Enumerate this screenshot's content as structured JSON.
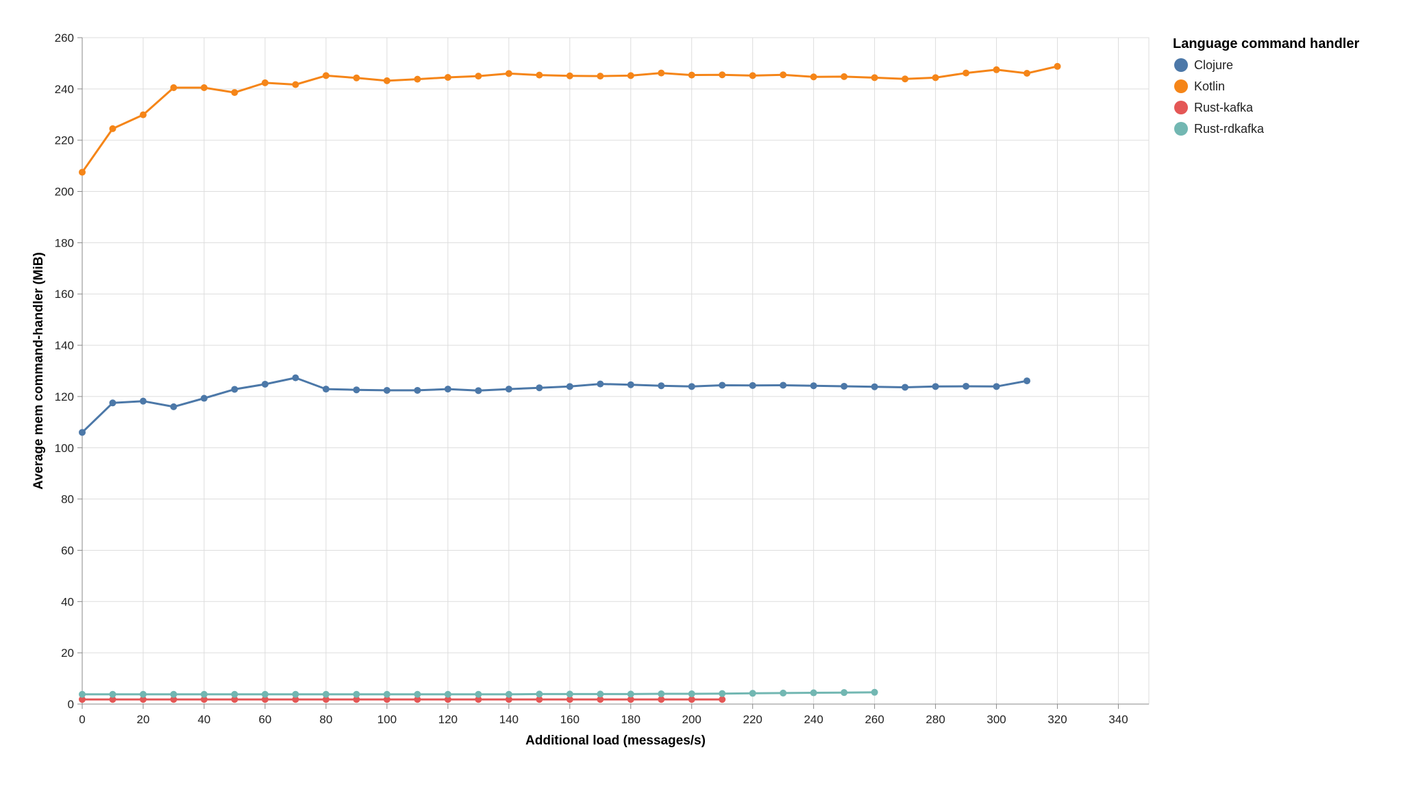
{
  "chart_data": {
    "type": "line",
    "title": "",
    "xlabel": "Additional load (messages/s)",
    "ylabel": "Average mem command-handler (MiB)",
    "xlim": [
      0,
      350
    ],
    "ylim": [
      0,
      260
    ],
    "x_ticks": [
      0,
      20,
      40,
      60,
      80,
      100,
      120,
      140,
      160,
      180,
      200,
      220,
      240,
      260,
      280,
      300,
      320,
      340
    ],
    "y_ticks": [
      0,
      20,
      40,
      60,
      80,
      100,
      120,
      140,
      160,
      180,
      200,
      220,
      240,
      260
    ],
    "grid": true,
    "legend": {
      "title": "Language command handler",
      "placement": "top-right"
    },
    "series": [
      {
        "name": "Clojure",
        "color": "#4c78a8",
        "x": [
          0,
          10,
          20,
          30,
          40,
          50,
          60,
          70,
          80,
          90,
          100,
          110,
          120,
          130,
          140,
          150,
          160,
          170,
          180,
          190,
          200,
          210,
          220,
          230,
          240,
          250,
          260,
          270,
          280,
          290,
          300,
          310
        ],
        "values": [
          106,
          117.5,
          118.2,
          116,
          119.3,
          122.8,
          124.8,
          127.3,
          122.9,
          122.6,
          122.4,
          122.4,
          122.9,
          122.3,
          122.9,
          123.4,
          123.9,
          124.9,
          124.6,
          124.2,
          123.9,
          124.4,
          124.3,
          124.4,
          124.2,
          124,
          123.8,
          123.6,
          123.9,
          124,
          123.9,
          126.1
        ]
      },
      {
        "name": "Kotlin",
        "color": "#f58518",
        "x": [
          0,
          10,
          20,
          30,
          40,
          50,
          60,
          70,
          80,
          90,
          100,
          110,
          120,
          130,
          140,
          150,
          160,
          170,
          180,
          190,
          200,
          210,
          220,
          230,
          240,
          250,
          260,
          270,
          280,
          290,
          300,
          310,
          320
        ],
        "values": [
          207.5,
          224.5,
          229.9,
          240.5,
          240.5,
          238.6,
          242.4,
          241.7,
          245.2,
          244.3,
          243.2,
          243.8,
          244.5,
          245,
          246,
          245.4,
          245.1,
          245,
          245.2,
          246.2,
          245.4,
          245.5,
          245.2,
          245.5,
          244.7,
          244.8,
          244.4,
          243.9,
          244.4,
          246.2,
          247.5,
          246.1,
          248.8
        ]
      },
      {
        "name": "Rust-kafka",
        "color": "#e45756",
        "x": [
          0,
          10,
          20,
          30,
          40,
          50,
          60,
          70,
          80,
          90,
          100,
          110,
          120,
          130,
          140,
          150,
          160,
          170,
          180,
          190,
          200,
          210
        ],
        "values": [
          1.8,
          1.8,
          1.8,
          1.8,
          1.8,
          1.8,
          1.8,
          1.8,
          1.8,
          1.8,
          1.8,
          1.8,
          1.8,
          1.8,
          1.8,
          1.8,
          1.8,
          1.8,
          1.8,
          1.8,
          1.8,
          1.8
        ]
      },
      {
        "name": "Rust-rdkafka",
        "color": "#72b7b2",
        "x": [
          0,
          10,
          20,
          30,
          40,
          50,
          60,
          70,
          80,
          90,
          100,
          110,
          120,
          130,
          140,
          150,
          160,
          170,
          180,
          190,
          200,
          210,
          220,
          230,
          240,
          250,
          260
        ],
        "values": [
          3.8,
          3.8,
          3.8,
          3.8,
          3.8,
          3.8,
          3.8,
          3.8,
          3.8,
          3.8,
          3.8,
          3.8,
          3.8,
          3.8,
          3.8,
          3.9,
          3.9,
          3.9,
          3.9,
          4.0,
          4.0,
          4.1,
          4.2,
          4.3,
          4.4,
          4.5,
          4.6
        ]
      }
    ]
  }
}
